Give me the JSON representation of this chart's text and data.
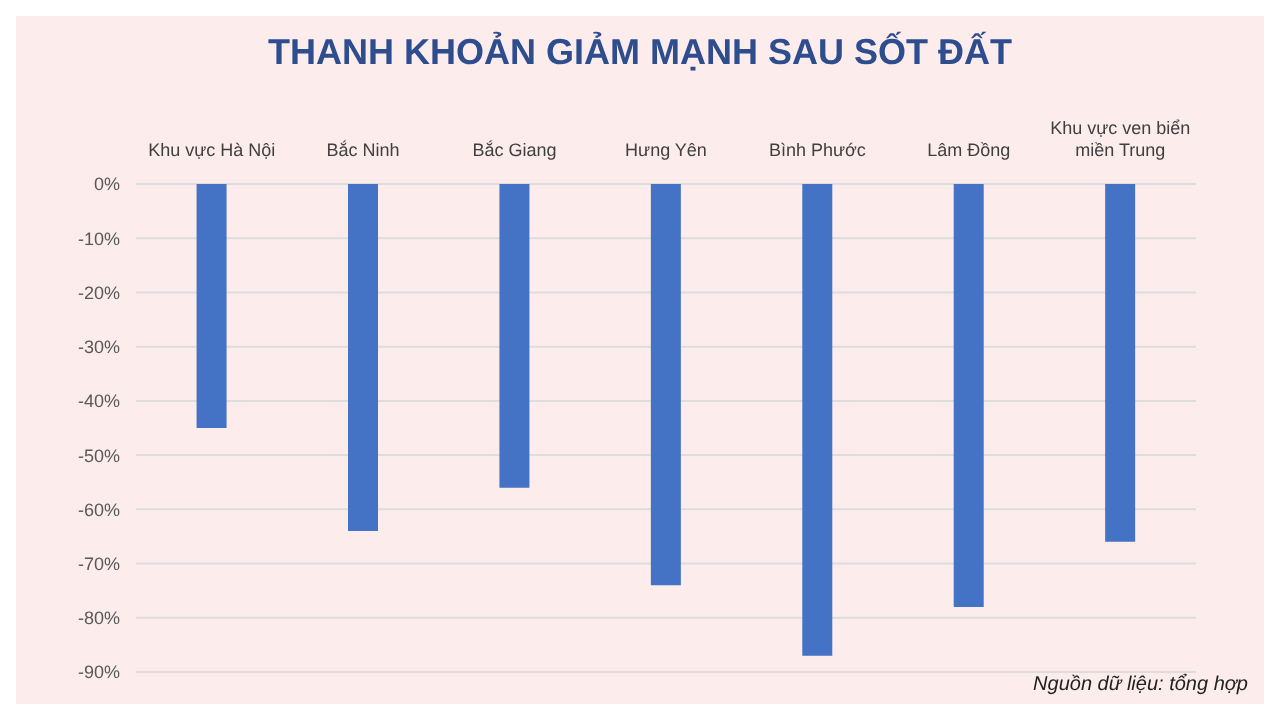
{
  "chart_data": {
    "type": "bar",
    "title": "THANH KHOẢN GIẢM MẠNH SAU SỐT ĐẤT",
    "categories": [
      "Khu vực Hà Nội",
      "Bắc Ninh",
      "Bắc Giang",
      "Hưng Yên",
      "Bình Phước",
      "Lâm Đồng",
      "Khu vực ven biển miền Trung"
    ],
    "values": [
      -45,
      -64,
      -56,
      -74,
      -87,
      -78,
      -66
    ],
    "color": "#4472c4",
    "ylim": [
      -90,
      0
    ],
    "yticks": [
      {
        "value": 0,
        "label": "0%"
      },
      {
        "value": -10,
        "label": "-10%"
      },
      {
        "value": -20,
        "label": "-20%"
      },
      {
        "value": -30,
        "label": "-30%"
      },
      {
        "value": -40,
        "label": "-40%"
      },
      {
        "value": -50,
        "label": "-50%"
      },
      {
        "value": -60,
        "label": "-60%"
      },
      {
        "value": -70,
        "label": "-70%"
      },
      {
        "value": -80,
        "label": "-80%"
      },
      {
        "value": -90,
        "label": "-90%"
      }
    ],
    "grid": "y",
    "annotations": [
      "Nguồn dữ liệu: tổng hợp"
    ]
  }
}
